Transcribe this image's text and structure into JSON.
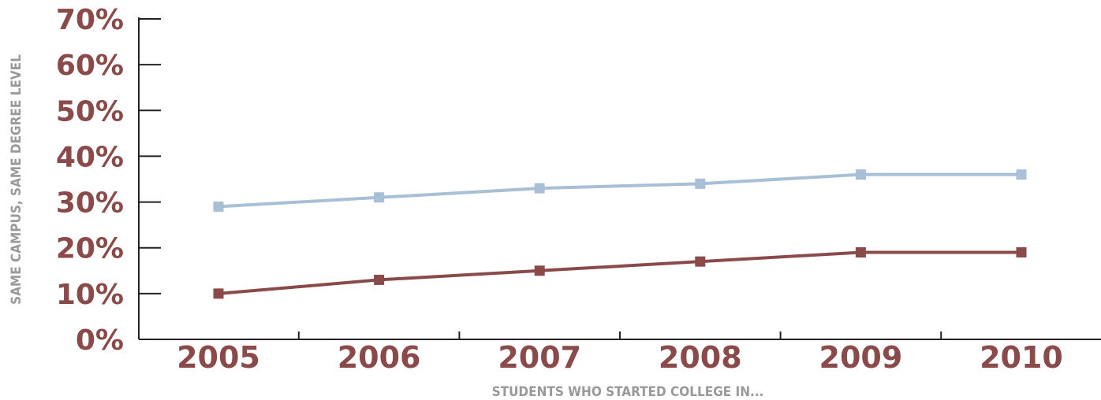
{
  "chart_data": {
    "type": "line",
    "title": "",
    "xlabel": "STUDENTS WHO STARTED COLLEGE IN...",
    "ylabel": "SAME CAMPUS, SAME DEGREE LEVEL",
    "categories": [
      "2005",
      "2006",
      "2007",
      "2008",
      "2009",
      "2010"
    ],
    "y_ticks": [
      "0%",
      "10%",
      "20%",
      "30%",
      "40%",
      "50%",
      "60%",
      "70%"
    ],
    "ylim": [
      0,
      70
    ],
    "grid": false,
    "legend": "none",
    "series": [
      {
        "color": "#a8bfd6",
        "values": [
          29,
          31,
          33,
          34,
          36,
          36
        ]
      },
      {
        "color": "#8b4a4a",
        "values": [
          10,
          13,
          15,
          17,
          19,
          19
        ]
      }
    ]
  },
  "colors": {
    "tick_label": "#8b4a4a",
    "axis_title": "#999999",
    "axis_line": "#222222"
  }
}
